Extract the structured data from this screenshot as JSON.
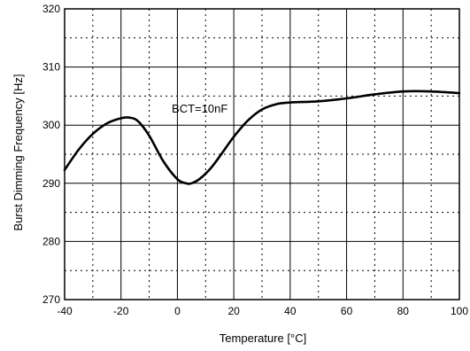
{
  "chart_data": {
    "type": "line",
    "title": "",
    "xlabel": "Temperature [°C]",
    "ylabel": "Burst Dimming Frequency [Hz]",
    "xlim": [
      -40,
      100
    ],
    "ylim": [
      270,
      320
    ],
    "x_ticks": [
      -40,
      -20,
      0,
      20,
      40,
      60,
      80,
      100
    ],
    "y_ticks": [
      270,
      280,
      290,
      300,
      310,
      320
    ],
    "x_tick_labels": [
      "-40",
      "-20",
      "0",
      "20",
      "40",
      "60",
      "80",
      "100"
    ],
    "y_tick_labels": [
      "270",
      "280",
      "290",
      "300",
      "310",
      "320"
    ],
    "major_grid": true,
    "minor_grid": true,
    "minor_grid_style": "dotted",
    "legend": "none",
    "annotations": [
      {
        "text": "BCT=10nF",
        "x": -2,
        "y": 302.2
      }
    ],
    "series": [
      {
        "color": "#000000",
        "x": [
          -40,
          -35,
          -30,
          -25,
          -20,
          -17,
          -14,
          -10,
          -5,
          0,
          3,
          5,
          8,
          12,
          16,
          20,
          25,
          30,
          35,
          40,
          50,
          60,
          70,
          80,
          90,
          100
        ],
        "y": [
          292.3,
          295.8,
          298.5,
          300.3,
          301.2,
          301.3,
          300.7,
          298.2,
          293.8,
          290.7,
          290.0,
          290.0,
          290.8,
          292.7,
          295.3,
          298.0,
          300.8,
          302.7,
          303.6,
          303.9,
          304.1,
          304.6,
          305.3,
          305.8,
          305.8,
          305.5
        ]
      }
    ]
  }
}
